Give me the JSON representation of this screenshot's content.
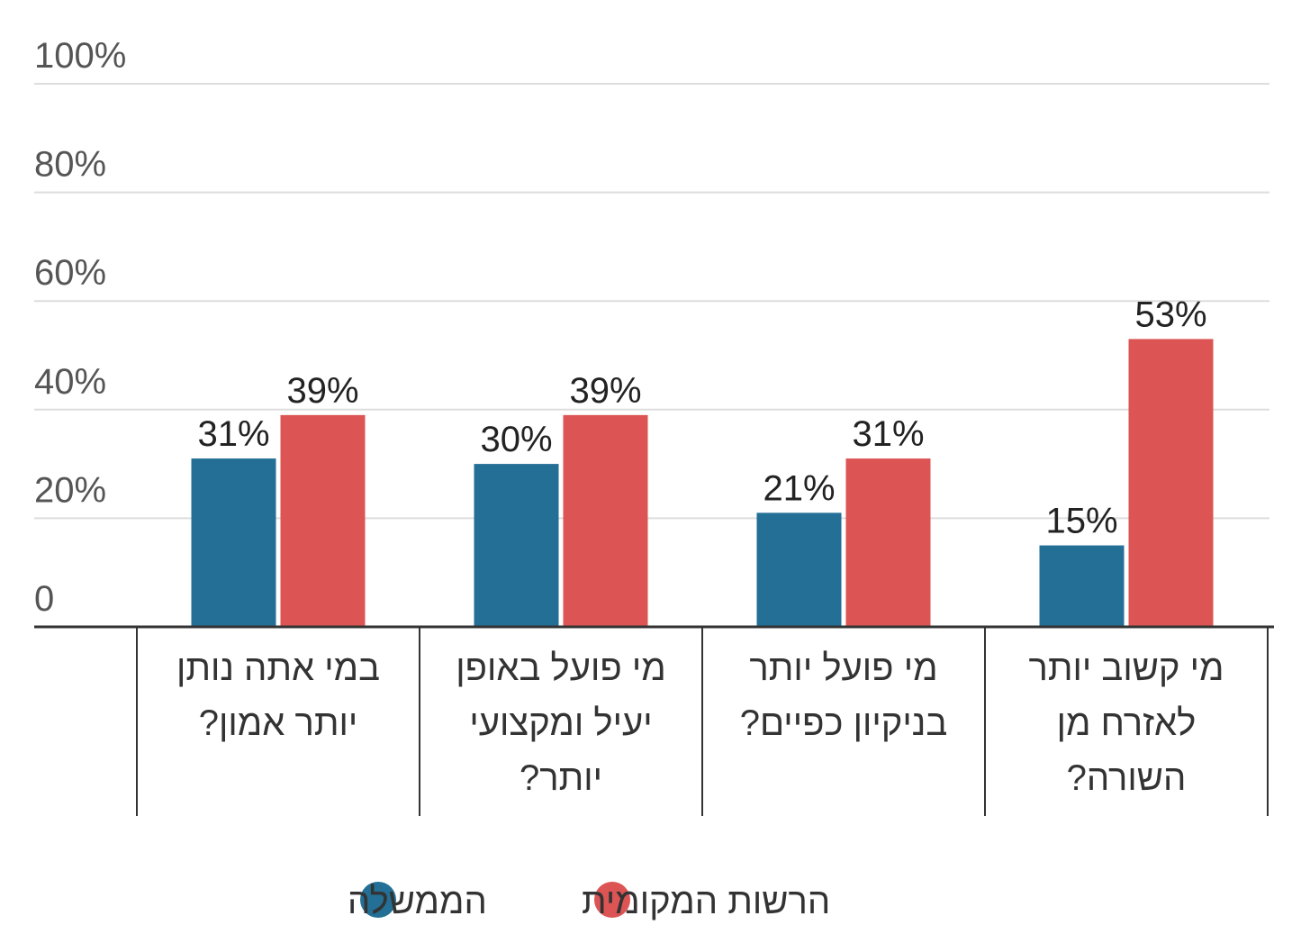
{
  "chart_data": {
    "type": "bar",
    "categories": [
      "במי אתה נותן יותר אמון?",
      "מי פועל באופן יעיל ומקצועי יותר?",
      "מי פועל יותר בניקיון כפיים?",
      "מי קשוב יותר לאזרח מן השורה?"
    ],
    "series": [
      {
        "name": "הממשלה",
        "color": "#236f96",
        "values": [
          31,
          30,
          21,
          15
        ],
        "value_labels": [
          "31%",
          "30%",
          "21%",
          "15%"
        ]
      },
      {
        "name": "הרשות המקומית",
        "color": "#dc5454",
        "values": [
          39,
          39,
          31,
          53
        ],
        "value_labels": [
          "39%",
          "39%",
          "31%",
          "53%"
        ]
      }
    ],
    "ylim": [
      0,
      100
    ],
    "yticks": [
      0,
      {
        "value": 20,
        "label": "20%"
      },
      {
        "value": 40,
        "label": "40%"
      },
      {
        "value": 60,
        "label": "60%"
      },
      {
        "value": 80,
        "label": "80%"
      },
      {
        "value": 100,
        "label": "100%"
      }
    ],
    "grid": true,
    "legend": "bottom"
  }
}
